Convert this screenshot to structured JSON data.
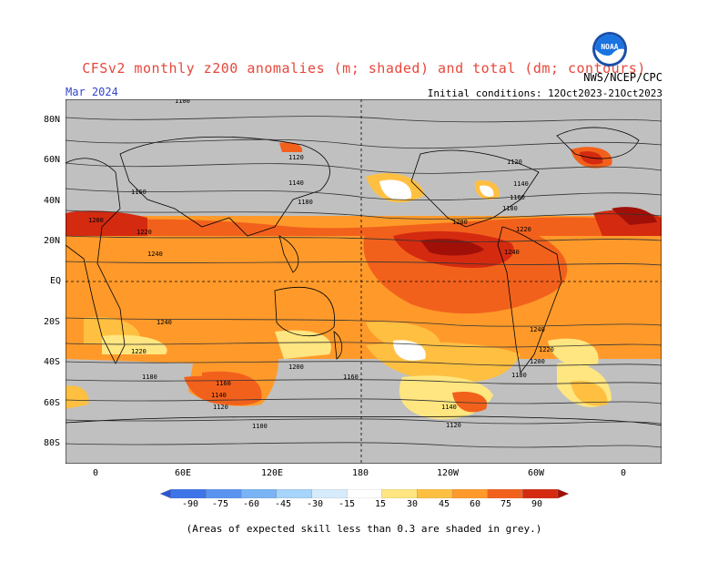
{
  "header": {
    "title": "CFSv2 monthly z200 anomalies (m; shaded) and total (dm; contours)",
    "month": "Mar 2024",
    "agency": "NWS/NCEP/CPC",
    "initial_conditions": "Initial conditions: 12Oct2023-21Oct2023"
  },
  "logo": {
    "icon": "noaa-logo-icon",
    "text": "NOAA"
  },
  "map": {
    "lat_labels": [
      "80N",
      "60N",
      "40N",
      "20N",
      "EQ",
      "20S",
      "40S",
      "60S",
      "80S"
    ],
    "lon_labels": [
      "0",
      "60E",
      "120E",
      "180",
      "120W",
      "60W",
      "0"
    ],
    "contour_labels": [
      "1100",
      "1120",
      "1140",
      "1160",
      "1180",
      "1200",
      "1220",
      "1240",
      "1240",
      "1220",
      "1200",
      "1180",
      "1160",
      "1140",
      "1120",
      "1100",
      "1120",
      "1140",
      "1160",
      "1180",
      "1200",
      "1220",
      "1240",
      "1240",
      "1220",
      "1200",
      "1180",
      "1160",
      "1140",
      "1120"
    ]
  },
  "colorbar": {
    "labels": [
      "-90",
      "-75",
      "-60",
      "-45",
      "-30",
      "-15",
      "15",
      "30",
      "45",
      "60",
      "75",
      "90"
    ],
    "colors": [
      "#2b54d6",
      "#3d74e8",
      "#5a94f0",
      "#7ab4f5",
      "#a6d4fa",
      "#d6ecfc",
      "#ffffff",
      "#ffe680",
      "#ffc042",
      "#ff9a2a",
      "#f2611c",
      "#d42a10",
      "#a01008"
    ]
  },
  "footnote": "(Areas of expected skill less than 0.3 are shaded in grey.)"
}
